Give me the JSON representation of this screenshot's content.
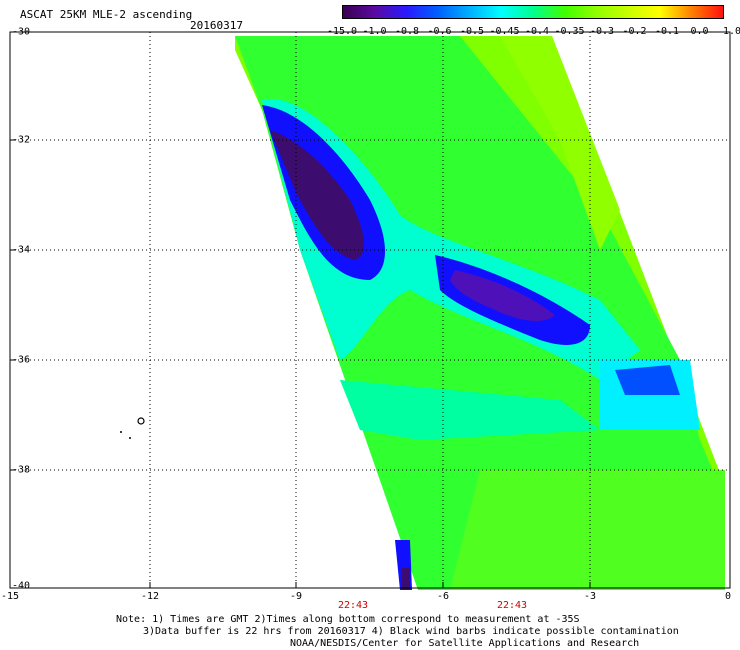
{
  "header": {
    "title": "ASCAT 25KM MLE-2 ascending",
    "date": "20160317"
  },
  "colorbar": {
    "labels": [
      "-15.0",
      "-1.0",
      "-0.8",
      "-0.6",
      "-0.5",
      "-0.45",
      "-0.4",
      "-0.35",
      "-0.3",
      "-0.2",
      "-0.1",
      "0.0",
      "1.0"
    ],
    "colors": [
      "#3a0050",
      "#5a0aa0",
      "#2a1aff",
      "#0060ff",
      "#00b0ff",
      "#00ffff",
      "#00ff90",
      "#40ff00",
      "#90ff00",
      "#c8ff00",
      "#ffff00",
      "#ff8000",
      "#ff1010"
    ]
  },
  "map": {
    "lat_range": [
      -40,
      -30
    ],
    "lon_range": [
      -15,
      0
    ],
    "lat_ticks": [
      "-30",
      "-32",
      "-34",
      "-36",
      "-38",
      "-40"
    ],
    "lon_ticks": [
      "-15",
      "-12",
      "-9",
      "-6",
      "-3",
      "0"
    ],
    "pass_times": [
      "22:43",
      "22:43"
    ],
    "palette_cells": {
      "deep_purple": "#3c0c6e",
      "purple": "#4e10b8",
      "blue": "#1010ff",
      "mid_blue": "#0050ff",
      "light_blue": "#00a0ff",
      "cyan": "#00ffff",
      "aqua_green": "#00ff9a",
      "green": "#28ff28",
      "yellow_green": "#80ff00",
      "lime": "#a8ff00"
    }
  },
  "footer": {
    "note_line1": "Note: 1) Times are GMT 2)Times along bottom correspond to measurement at -35S",
    "note_line2": "3)Data buffer is 22 hrs from 20160317 4) Black wind barbs indicate possible contamination",
    "credit": "NOAA/NESDIS/Center for Satellite Applications and Research"
  }
}
